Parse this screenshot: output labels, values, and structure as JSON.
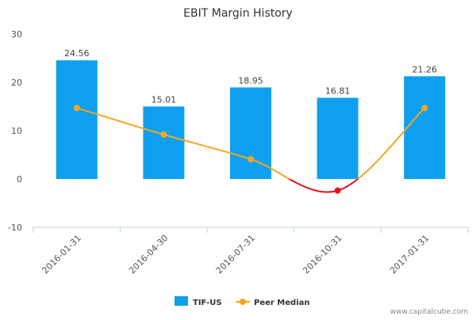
{
  "chart_data": {
    "type": "bar",
    "title": "EBIT Margin History",
    "categories": [
      "2016-01-31",
      "2016-04-30",
      "2016-07-31",
      "2016-10-31",
      "2017-01-31"
    ],
    "series": [
      {
        "name": "TIF-US",
        "type": "bar",
        "color": "#0ea0ee",
        "values": [
          24.56,
          15.01,
          18.95,
          16.81,
          21.26
        ],
        "labels": [
          "24.56",
          "15.01",
          "18.95",
          "16.81",
          "21.26"
        ]
      },
      {
        "name": "Peer Median",
        "type": "line",
        "color": "#f5a623",
        "negative_color": "#e8111b",
        "values": [
          14.7,
          9.2,
          4.1,
          -2.4,
          14.7
        ]
      }
    ],
    "yticks": [
      "30",
      "20",
      "10",
      "0",
      "-10"
    ],
    "ylim": [
      -10,
      30
    ],
    "legend_position": "bottom-center"
  },
  "watermark": "www.capitalcube.com"
}
